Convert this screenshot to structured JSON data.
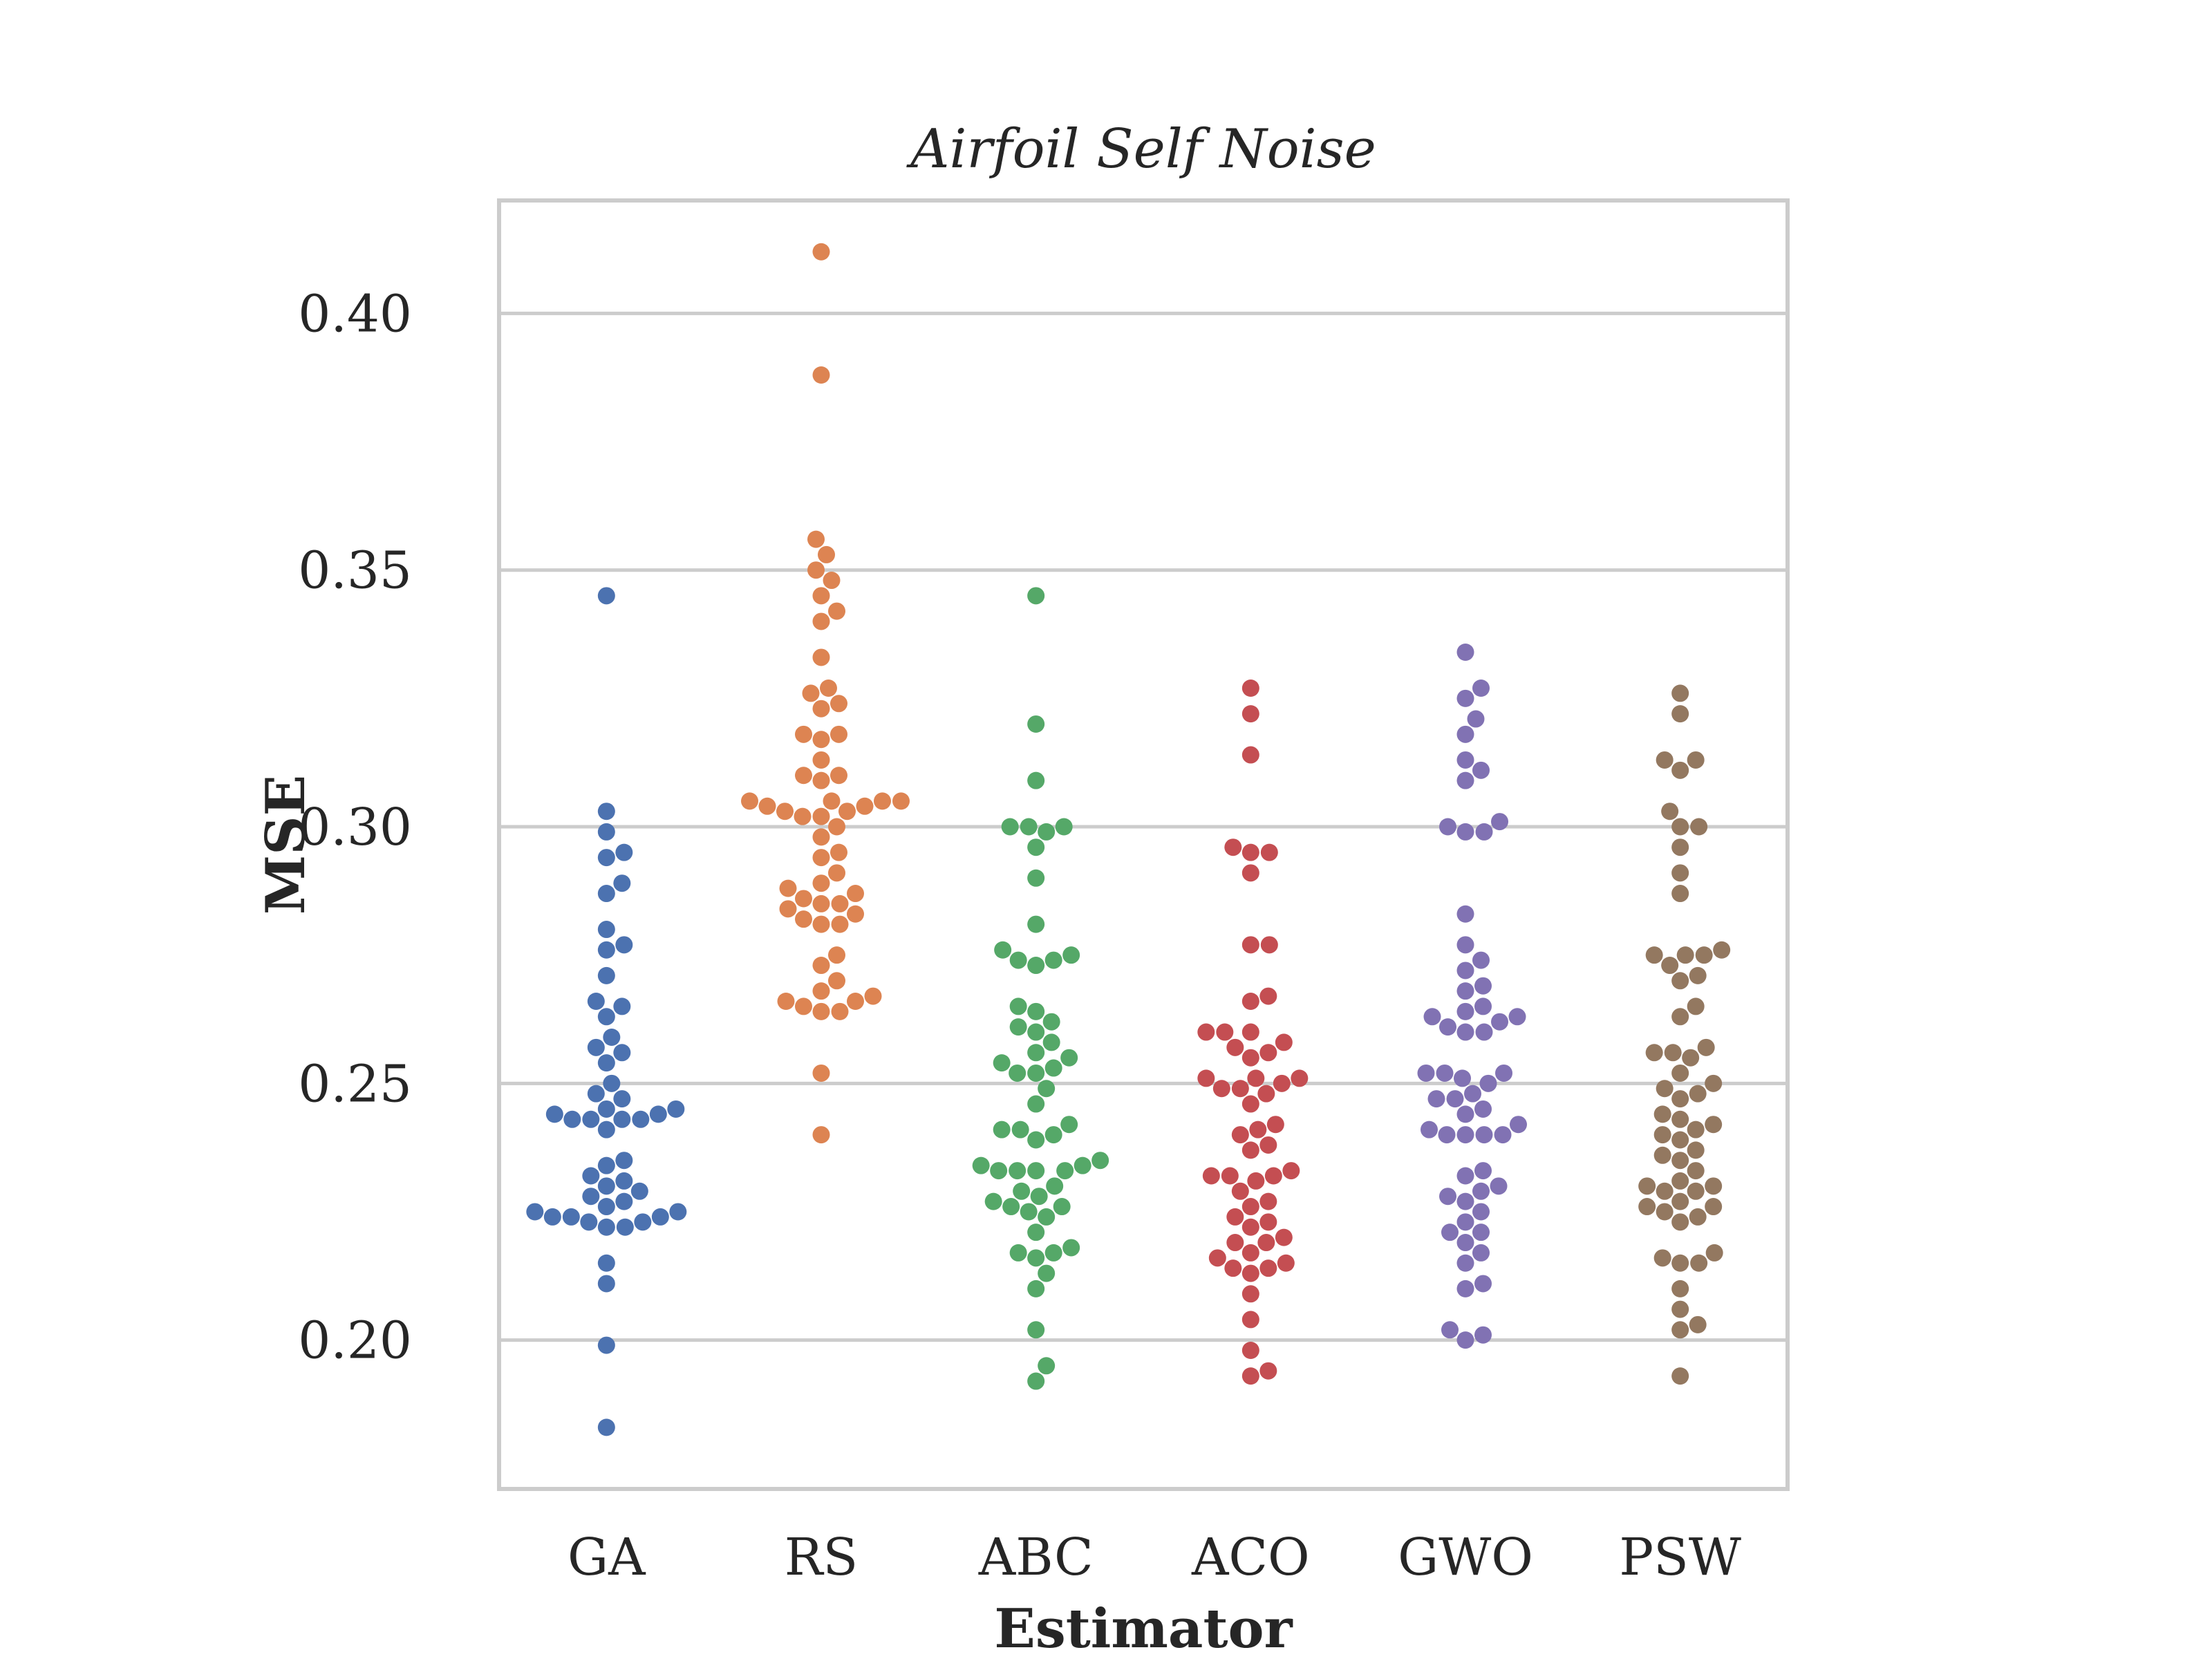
{
  "chart_data": {
    "type": "scatter",
    "subtype": "swarm",
    "title": "Airfoil Self Noise",
    "xlabel": "Estimator",
    "ylabel": "MSE",
    "ylim": [
      0.171,
      0.422
    ],
    "yticks": [
      0.2,
      0.25,
      0.3,
      0.35,
      0.4
    ],
    "ytick_labels": [
      "0.20",
      "0.25",
      "0.30",
      "0.35",
      "0.40"
    ],
    "grid": "horizontal",
    "categories": [
      "GA",
      "RS",
      "ABC",
      "ACO",
      "GWO",
      "PSW"
    ],
    "colors": [
      "#4c72b0",
      "#dd8452",
      "#55a868",
      "#c44e52",
      "#8172b3",
      "#937860"
    ],
    "series": [
      {
        "values": [
          0.345,
          0.303,
          0.299,
          0.295,
          0.294,
          0.289,
          0.287,
          0.28,
          0.277,
          0.276,
          0.271,
          0.266,
          0.265,
          0.263,
          0.259,
          0.257,
          0.256,
          0.254,
          0.25,
          0.248,
          0.247,
          0.245,
          0.245,
          0.244,
          0.244,
          0.243,
          0.243,
          0.243,
          0.243,
          0.241,
          0.235,
          0.234,
          0.232,
          0.231,
          0.23,
          0.229,
          0.228,
          0.227,
          0.226,
          0.225,
          0.225,
          0.224,
          0.224,
          0.224,
          0.223,
          0.223,
          0.222,
          0.222,
          0.215,
          0.211,
          0.199,
          0.183
        ]
      },
      {
        "values": [
          0.412,
          0.388,
          0.356,
          0.353,
          0.35,
          0.348,
          0.345,
          0.342,
          0.34,
          0.333,
          0.327,
          0.326,
          0.324,
          0.323,
          0.318,
          0.318,
          0.317,
          0.313,
          0.31,
          0.31,
          0.309,
          0.305,
          0.305,
          0.305,
          0.305,
          0.304,
          0.304,
          0.303,
          0.303,
          0.302,
          0.302,
          0.3,
          0.298,
          0.295,
          0.294,
          0.291,
          0.289,
          0.288,
          0.287,
          0.286,
          0.285,
          0.285,
          0.284,
          0.283,
          0.282,
          0.281,
          0.281,
          0.275,
          0.273,
          0.27,
          0.268,
          0.267,
          0.266,
          0.266,
          0.265,
          0.264,
          0.264,
          0.252,
          0.24
        ]
      },
      {
        "values": [
          0.345,
          0.32,
          0.309,
          0.3,
          0.3,
          0.3,
          0.299,
          0.296,
          0.29,
          0.281,
          0.276,
          0.275,
          0.274,
          0.274,
          0.273,
          0.265,
          0.264,
          0.262,
          0.261,
          0.26,
          0.258,
          0.256,
          0.255,
          0.254,
          0.253,
          0.252,
          0.252,
          0.249,
          0.246,
          0.242,
          0.241,
          0.241,
          0.24,
          0.239,
          0.235,
          0.234,
          0.234,
          0.233,
          0.233,
          0.233,
          0.233,
          0.23,
          0.229,
          0.228,
          0.227,
          0.226,
          0.226,
          0.225,
          0.224,
          0.221,
          0.218,
          0.217,
          0.217,
          0.216,
          0.213,
          0.21,
          0.202,
          0.195,
          0.192
        ]
      },
      {
        "values": [
          0.327,
          0.322,
          0.314,
          0.296,
          0.295,
          0.295,
          0.291,
          0.277,
          0.277,
          0.267,
          0.266,
          0.26,
          0.26,
          0.26,
          0.258,
          0.257,
          0.256,
          0.255,
          0.251,
          0.251,
          0.251,
          0.25,
          0.249,
          0.249,
          0.248,
          0.246,
          0.242,
          0.241,
          0.24,
          0.238,
          0.237,
          0.233,
          0.232,
          0.232,
          0.232,
          0.231,
          0.229,
          0.227,
          0.226,
          0.224,
          0.223,
          0.222,
          0.22,
          0.219,
          0.219,
          0.217,
          0.216,
          0.215,
          0.214,
          0.214,
          0.213,
          0.209,
          0.204,
          0.198,
          0.194,
          0.193
        ]
      },
      {
        "values": [
          0.334,
          0.327,
          0.325,
          0.321,
          0.318,
          0.313,
          0.311,
          0.309,
          0.301,
          0.3,
          0.299,
          0.299,
          0.283,
          0.277,
          0.274,
          0.272,
          0.269,
          0.268,
          0.265,
          0.264,
          0.263,
          0.263,
          0.262,
          0.261,
          0.26,
          0.26,
          0.252,
          0.252,
          0.252,
          0.251,
          0.25,
          0.248,
          0.247,
          0.247,
          0.245,
          0.244,
          0.242,
          0.241,
          0.24,
          0.24,
          0.24,
          0.24,
          0.233,
          0.232,
          0.23,
          0.229,
          0.228,
          0.227,
          0.225,
          0.223,
          0.221,
          0.221,
          0.219,
          0.217,
          0.215,
          0.211,
          0.21,
          0.202,
          0.201,
          0.2
        ]
      },
      {
        "values": [
          0.326,
          0.322,
          0.313,
          0.313,
          0.311,
          0.303,
          0.3,
          0.3,
          0.296,
          0.291,
          0.287,
          0.276,
          0.275,
          0.275,
          0.275,
          0.273,
          0.271,
          0.27,
          0.265,
          0.263,
          0.257,
          0.256,
          0.256,
          0.255,
          0.252,
          0.25,
          0.249,
          0.248,
          0.247,
          0.244,
          0.243,
          0.242,
          0.241,
          0.24,
          0.239,
          0.237,
          0.236,
          0.235,
          0.233,
          0.231,
          0.23,
          0.23,
          0.229,
          0.229,
          0.227,
          0.226,
          0.226,
          0.225,
          0.224,
          0.223,
          0.217,
          0.216,
          0.215,
          0.215,
          0.21,
          0.206,
          0.203,
          0.202,
          0.193
        ]
      }
    ]
  }
}
